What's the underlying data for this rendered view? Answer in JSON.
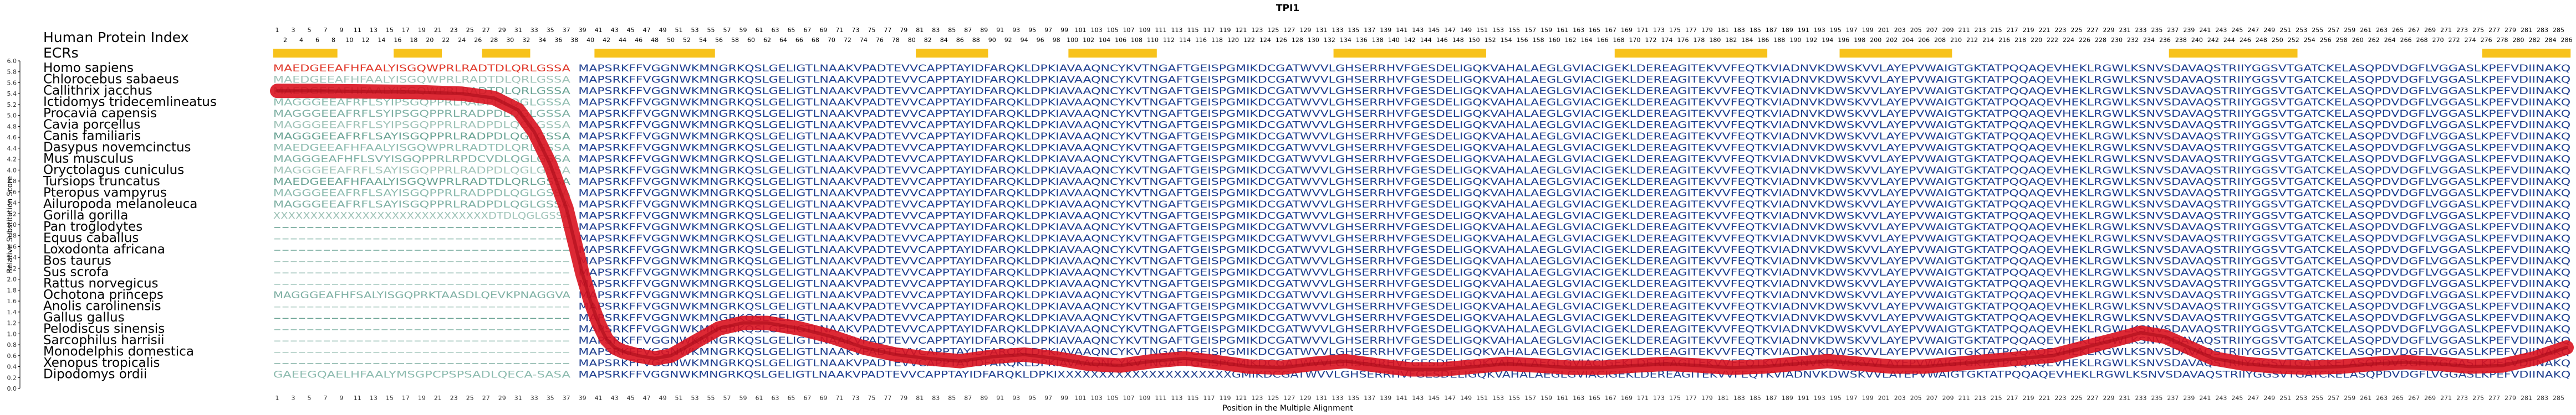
{
  "chart_data": {
    "type": "line",
    "title": "TPI1",
    "xlabel": "Position in the Multiple Alignment",
    "ylabel": "Relative Substitution Score",
    "xlim": [
      1,
      286
    ],
    "ylim": [
      0,
      6.0
    ],
    "y_ticks": [
      "0.0",
      "0.2",
      "0.4",
      "0.6",
      "0.8",
      "1.0",
      "1.2",
      "1.4",
      "1.6",
      "1.8",
      "2.0",
      "2.2",
      "2.4",
      "2.6",
      "2.8",
      "3.0",
      "3.2",
      "3.4",
      "3.6",
      "3.8",
      "4.0",
      "4.2",
      "4.4",
      "4.6",
      "4.8",
      "5.0",
      "5.2",
      "5.4",
      "5.6",
      "5.8",
      "6.0"
    ],
    "x_tick_step": 2,
    "grid": false,
    "row_labels": {
      "index": "Human Protein Index",
      "ecrs": "ECRs"
    },
    "species": [
      "Homo sapiens",
      "Chlorocebus sabaeus",
      "Callithrix jacchus",
      "Ictidomys tridecemlineatus",
      "Procavia capensis",
      "Cavia porcellus",
      "Canis familiaris",
      "Dasypus novemcinctus",
      "Mus musculus",
      "Oryctolagus cuniculus",
      "Tursiops truncatus",
      "Pteropus vampyrus",
      "Ailuropoda melanoleuca",
      "Gorilla gorilla",
      "Pan troglodytes",
      "Equus caballus",
      "Loxodonta africana",
      "Bos taurus",
      "Sus scrofa",
      "Rattus norvegicus",
      "Ochotona princeps",
      "Anolis carolinensis",
      "Gallus gallus",
      "Pelodiscus sinensis",
      "Sarcophilus harrisii",
      "Monodelphis domestica",
      "Xenopus tropicalis",
      "Dipodomys ordii"
    ],
    "sequence_core": "MAPSRKFFVGGNWKMNGRKQSLGELIGTLNAAKVPADTEVVCAPPTAYIDFARQKLDPKIAVAAQNCYKVTNGAFTGEISPGMIKDCGATWVVLGHSERRHVFGESDELIGQKVAHALAEGLGVIACIGEKLDEREAGITEKVVFEQTKVIADNVKDWSKVVLAYEPVWAIGTGKTATPQQAQEVHEKLRGWLKSNVSDAVAQSTRIIYGGSVTGATCKELASQPDVDGFLVGGASLKPEFVDIINAKQ",
    "prefix_lines": [
      "MAEDGEEAFHFAALYISGQWPRLRADTDLQRLGSSA",
      "MAEDGEEAFHFAALYISGQWPRLRADTDLQRLGSSA",
      "MAEDGEEAFHFAALYISGQWPRLRADTDLQRLGSSA",
      "MAGGGEEAFRFLSYIPSGQPPRLRADPDLQGLGSSA",
      "MAGGGEEAFRFLSYIPSGQPPRLRADPDLQGLGSSA",
      "MAGGGEEAFRFLSYIPSGQPPRLRADPDLQGLGSSA",
      "MAGGGEEAFRFLSAYISGQPPRLRADPDLQGLGSSA",
      "MAEDGEEAFHFAALYISGQWPRLRADTDLQRLGSSA",
      "MAGGGEAFHFLSVYISGQPPRLRPDCVDLQGLGSSA",
      "MAGGGEEAFRFLSAYISGQPPRLRADPDLQGLGSSA",
      "MAEDGEEAFHFAALYISGQWPRLRADTDLQRLGSSA",
      "MAGGGEEAFRFLSAYISGQPPRLRADPDLQGLGSSA",
      "MAGGGEEAFRFLSAYISGQPPRLRADPDLQGLGSSA",
      "XXXXXXXXXXXXXXXXXXXXXXXXXXXXXDTDLQGLGSSA",
      "------------------------------------",
      "------------------------------------",
      "------------------------------------",
      "------------------------------------",
      "------------------------------------",
      "------------------------------------",
      "MAGGGEAFHFSALYISGQPRKTAASDLQEVKPNAGGVA",
      "------------------------------------",
      "------------------------------------",
      "------------------------------------",
      "------------------------------------",
      "------------------------------------",
      "------------------------------------",
      "GAEEGQAELHFAALYMSGPCPSPSADLQECA-SASA"
    ],
    "ecr_segments": [
      [
        1,
        8
      ],
      [
        16,
        21
      ],
      [
        27,
        32
      ],
      [
        41,
        55
      ],
      [
        81,
        89
      ],
      [
        100,
        110
      ],
      [
        133,
        151
      ],
      [
        168,
        186
      ],
      [
        196,
        209
      ],
      [
        237,
        252
      ],
      [
        276,
        286
      ]
    ],
    "series": [
      {
        "x": [
          1,
          6,
          12,
          18,
          24,
          28,
          31,
          33,
          35,
          37,
          38,
          39,
          40,
          41,
          42,
          43,
          44,
          46,
          48,
          50,
          53,
          56,
          59,
          62,
          66,
          70,
          74,
          78,
          82,
          86,
          90,
          94,
          98,
          102,
          106,
          110,
          114,
          118,
          122,
          126,
          130,
          134,
          138,
          142,
          146,
          150,
          154,
          158,
          162,
          166,
          170,
          174,
          178,
          182,
          186,
          190,
          194,
          198,
          202,
          206,
          210,
          214,
          218,
          222,
          226,
          230,
          233,
          236,
          239,
          242,
          246,
          250,
          254,
          258,
          262,
          266,
          270,
          274,
          278,
          282,
          286
        ],
        "y": [
          5.45,
          5.45,
          5.44,
          5.43,
          5.4,
          5.32,
          5.1,
          4.7,
          4.1,
          3.3,
          2.7,
          2.1,
          1.6,
          1.2,
          0.9,
          0.75,
          0.68,
          0.6,
          0.55,
          0.6,
          0.85,
          1.1,
          1.2,
          1.2,
          1.1,
          0.95,
          0.75,
          0.62,
          0.55,
          0.5,
          0.58,
          0.62,
          0.55,
          0.45,
          0.42,
          0.5,
          0.55,
          0.48,
          0.4,
          0.38,
          0.45,
          0.5,
          0.42,
          0.35,
          0.35,
          0.4,
          0.45,
          0.42,
          0.38,
          0.38,
          0.42,
          0.45,
          0.42,
          0.38,
          0.4,
          0.45,
          0.5,
          0.45,
          0.4,
          0.4,
          0.45,
          0.5,
          0.55,
          0.6,
          0.75,
          0.9,
          1.02,
          0.95,
          0.75,
          0.55,
          0.45,
          0.4,
          0.38,
          0.4,
          0.45,
          0.48,
          0.45,
          0.4,
          0.42,
          0.55,
          0.75
        ]
      }
    ]
  }
}
